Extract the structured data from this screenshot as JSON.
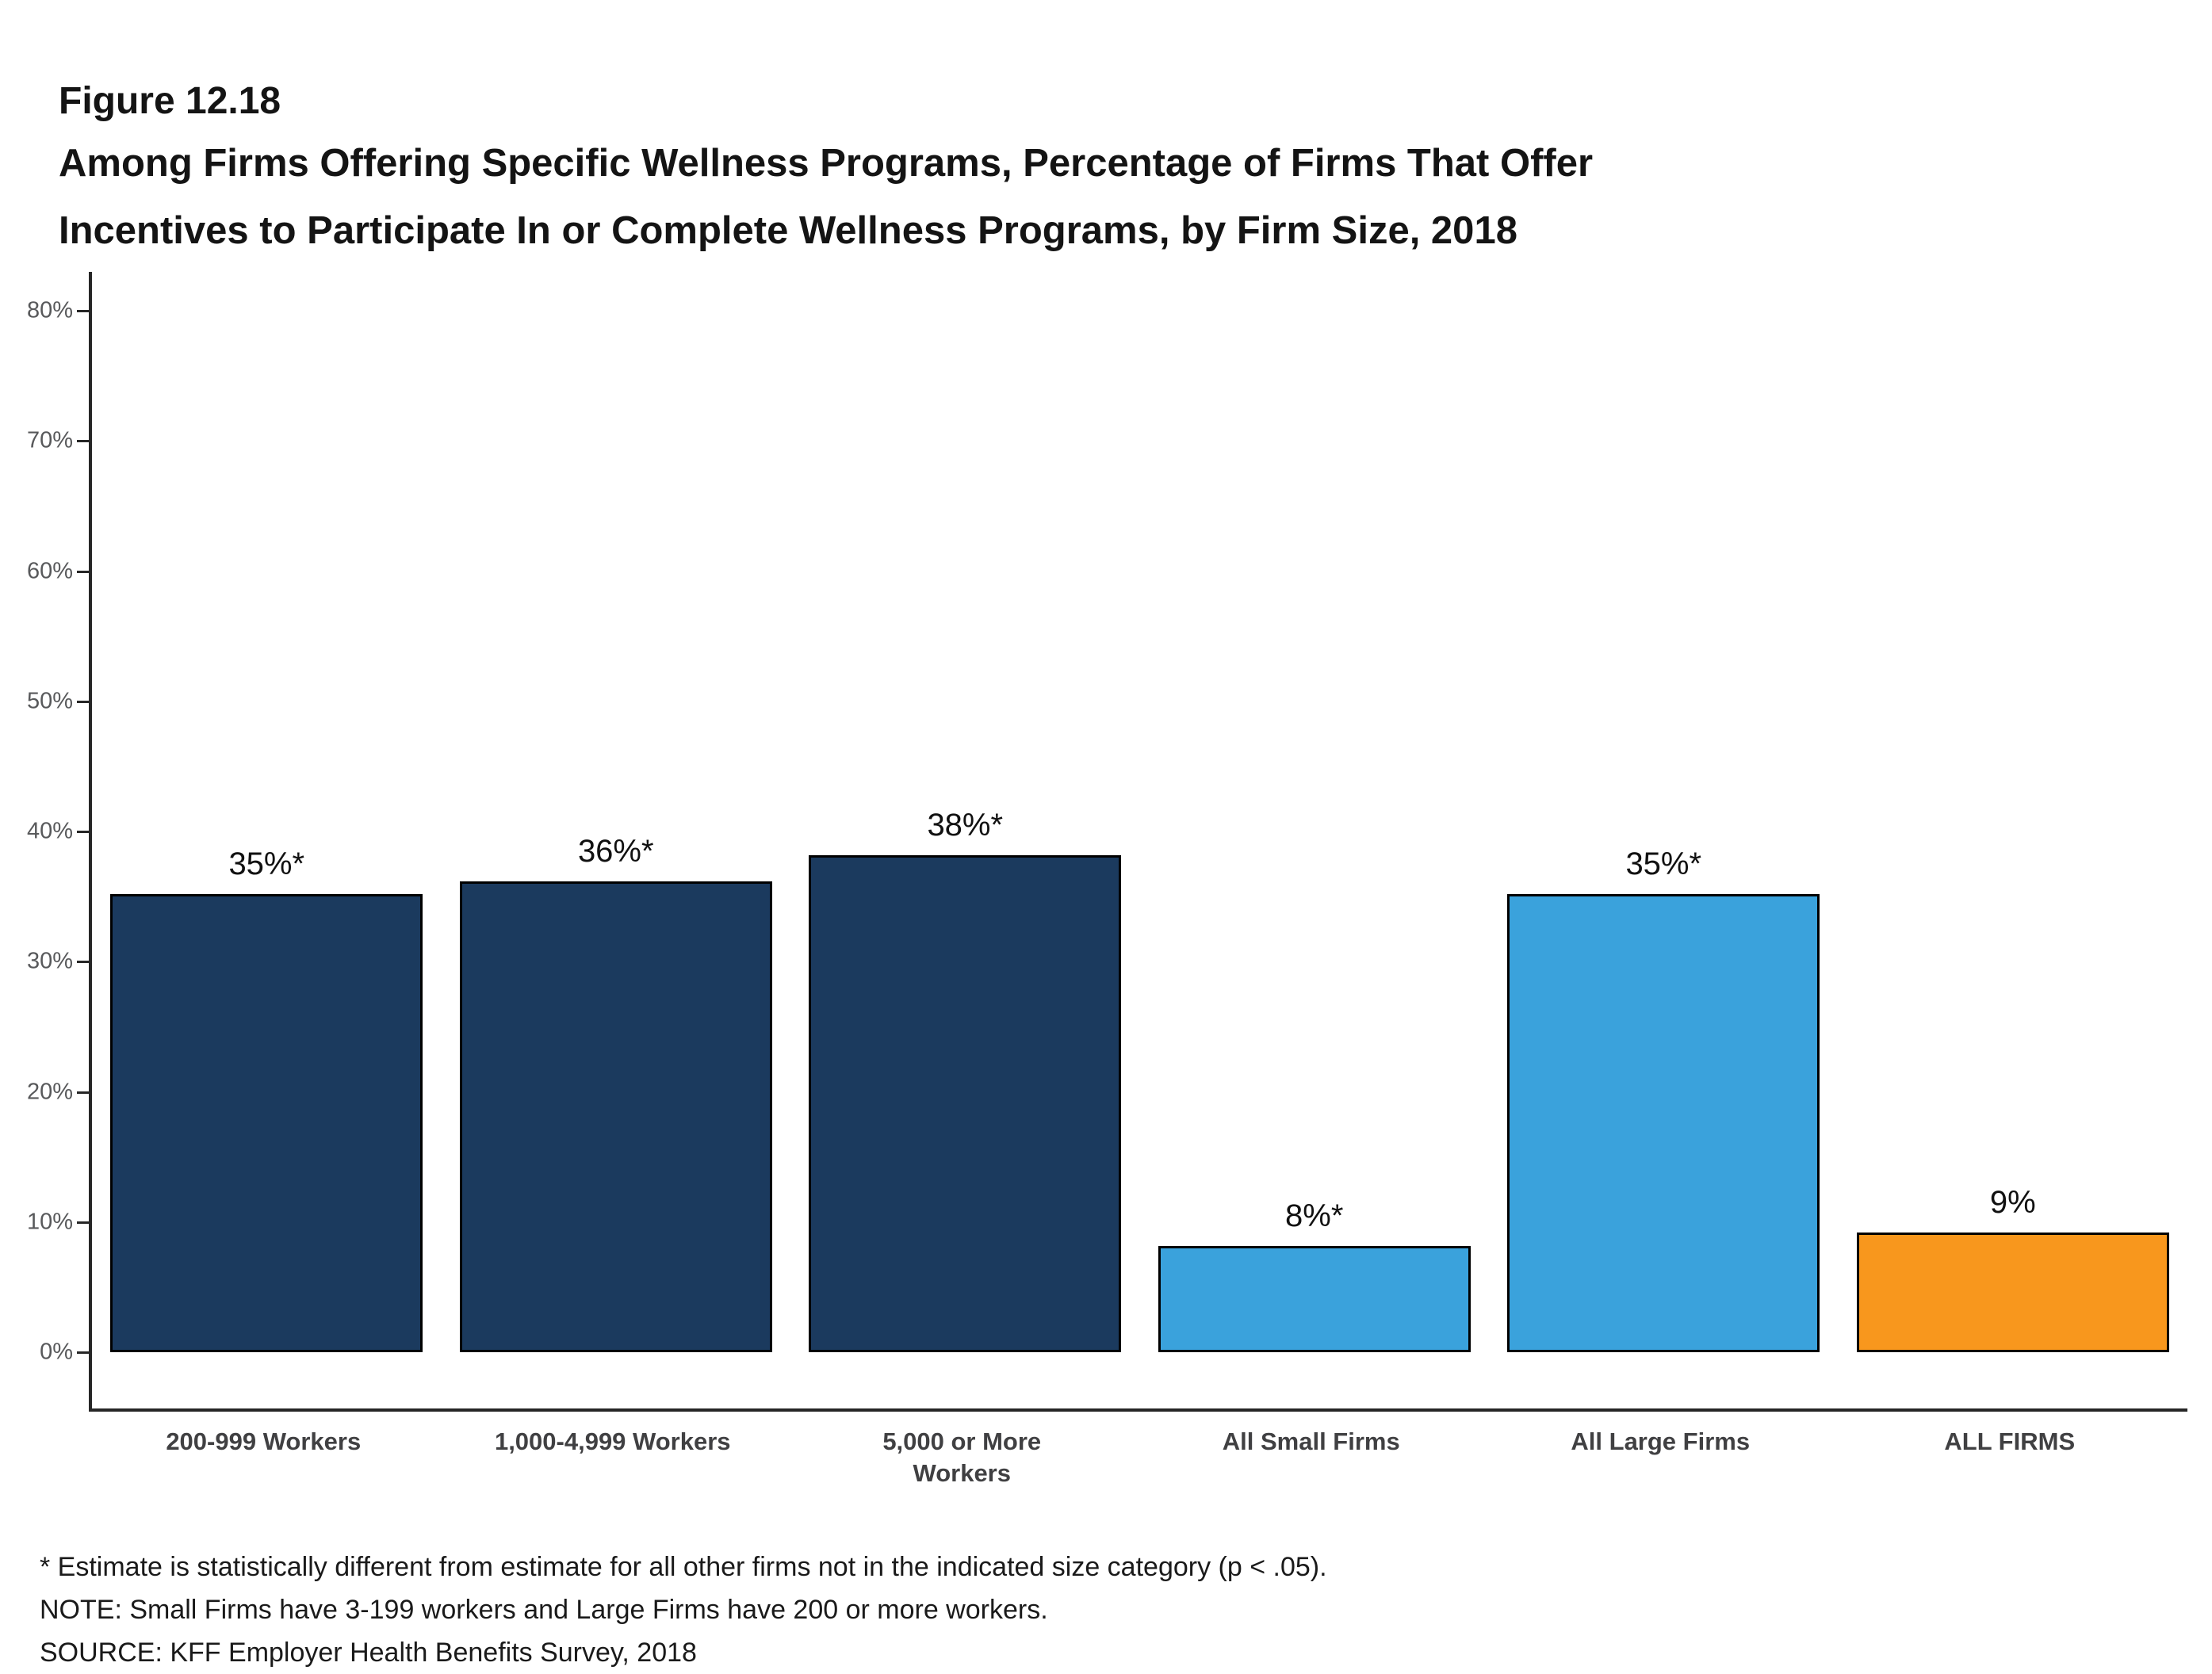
{
  "header": {
    "figure_label": "Figure 12.18",
    "title_line1": "Among Firms Offering Specific Wellness Programs, Percentage of Firms That Offer",
    "title_line2": "Incentives to Participate In or Complete Wellness Programs, by Firm Size, 2018"
  },
  "footnotes": {
    "statistical": "* Estimate is statistically different from estimate for all other firms not in the indicated size category (p < .05).",
    "note": "NOTE: Small Firms have 3-199 workers and Large Firms have 200 or more workers.",
    "source": "SOURCE: KFF Employer Health Benefits Survey, 2018"
  },
  "chart_data": {
    "type": "bar",
    "title": "Among Firms Offering Specific Wellness Programs, Percentage of Firms That Offer Incentives to Participate In or Complete Wellness Programs, by Firm Size, 2018",
    "categories": [
      "200-999 Workers",
      "1,000-4,999 Workers",
      "5,000 or More Workers",
      "All Small Firms",
      "All Large Firms",
      "ALL FIRMS"
    ],
    "categories_display": [
      "200-999 Workers",
      "1,000-4,999 Workers",
      "5,000 or More\nWorkers",
      "All Small Firms",
      "All Large Firms",
      "ALL FIRMS"
    ],
    "values": [
      35,
      36,
      38,
      8,
      35,
      9
    ],
    "bar_labels": [
      "35%*",
      "36%*",
      "38%*",
      "8%*",
      "35%*",
      "9%"
    ],
    "bar_colors": [
      "#1B3A5E",
      "#1B3A5E",
      "#1B3A5E",
      "#3AA2DC",
      "#3AA2DC",
      "#F8971D"
    ],
    "xlabel": "",
    "ylabel": "",
    "ylim": [
      0,
      80
    ],
    "ytick_interval": 10,
    "ytick_labels": [
      "0%",
      "10%",
      "20%",
      "30%",
      "40%",
      "50%",
      "60%",
      "70%",
      "80%"
    ],
    "grid": false,
    "legend": "none"
  }
}
